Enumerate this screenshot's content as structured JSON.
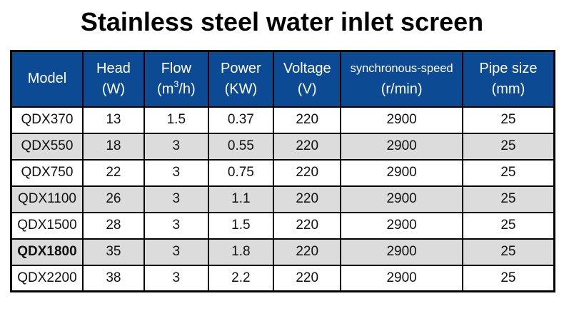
{
  "title": "Stainless steel water inlet screen",
  "colors": {
    "header_bg": "#0c4a94",
    "header_text": "#ffffff",
    "row_alt_bg": "#dcdcdc",
    "border": "#000000",
    "text": "#111111"
  },
  "table": {
    "columns": [
      {
        "label": "Model",
        "unit_pre": "",
        "unit_sup": "",
        "unit_post": ""
      },
      {
        "label": "Head",
        "unit_pre": "(W)",
        "unit_sup": "",
        "unit_post": ""
      },
      {
        "label": "Flow",
        "unit_pre": "(m",
        "unit_sup": "3",
        "unit_post": "/h)"
      },
      {
        "label": "Power",
        "unit_pre": "(KW)",
        "unit_sup": "",
        "unit_post": ""
      },
      {
        "label": "Voltage",
        "unit_pre": "(V)",
        "unit_sup": "",
        "unit_post": ""
      },
      {
        "label": "synchronous-speed",
        "unit_pre": "(r/min)",
        "unit_sup": "",
        "unit_post": ""
      },
      {
        "label": "Pipe size",
        "unit_pre": "(mm)",
        "unit_sup": "",
        "unit_post": ""
      }
    ],
    "field_order": [
      "model",
      "head",
      "flow",
      "power",
      "voltage",
      "speed",
      "pipe"
    ],
    "rows": [
      {
        "model": "QDX370",
        "head": "13",
        "flow": "1.5",
        "power": "0.37",
        "voltage": "220",
        "speed": "2900",
        "pipe": "25",
        "bold_model": false
      },
      {
        "model": "QDX550",
        "head": "18",
        "flow": "3",
        "power": "0.55",
        "voltage": "220",
        "speed": "2900",
        "pipe": "25",
        "bold_model": false
      },
      {
        "model": "QDX750",
        "head": "22",
        "flow": "3",
        "power": "0.75",
        "voltage": "220",
        "speed": "2900",
        "pipe": "25",
        "bold_model": false
      },
      {
        "model": "QDX1100",
        "head": "26",
        "flow": "3",
        "power": "1.1",
        "voltage": "220",
        "speed": "2900",
        "pipe": "25",
        "bold_model": false
      },
      {
        "model": "QDX1500",
        "head": "28",
        "flow": "3",
        "power": "1.5",
        "voltage": "220",
        "speed": "2900",
        "pipe": "25",
        "bold_model": false
      },
      {
        "model": "QDX1800",
        "head": "35",
        "flow": "3",
        "power": "1.8",
        "voltage": "220",
        "speed": "2900",
        "pipe": "25",
        "bold_model": true
      },
      {
        "model": "QDX2200",
        "head": "38",
        "flow": "3",
        "power": "2.2",
        "voltage": "220",
        "speed": "2900",
        "pipe": "25",
        "bold_model": false
      }
    ]
  }
}
